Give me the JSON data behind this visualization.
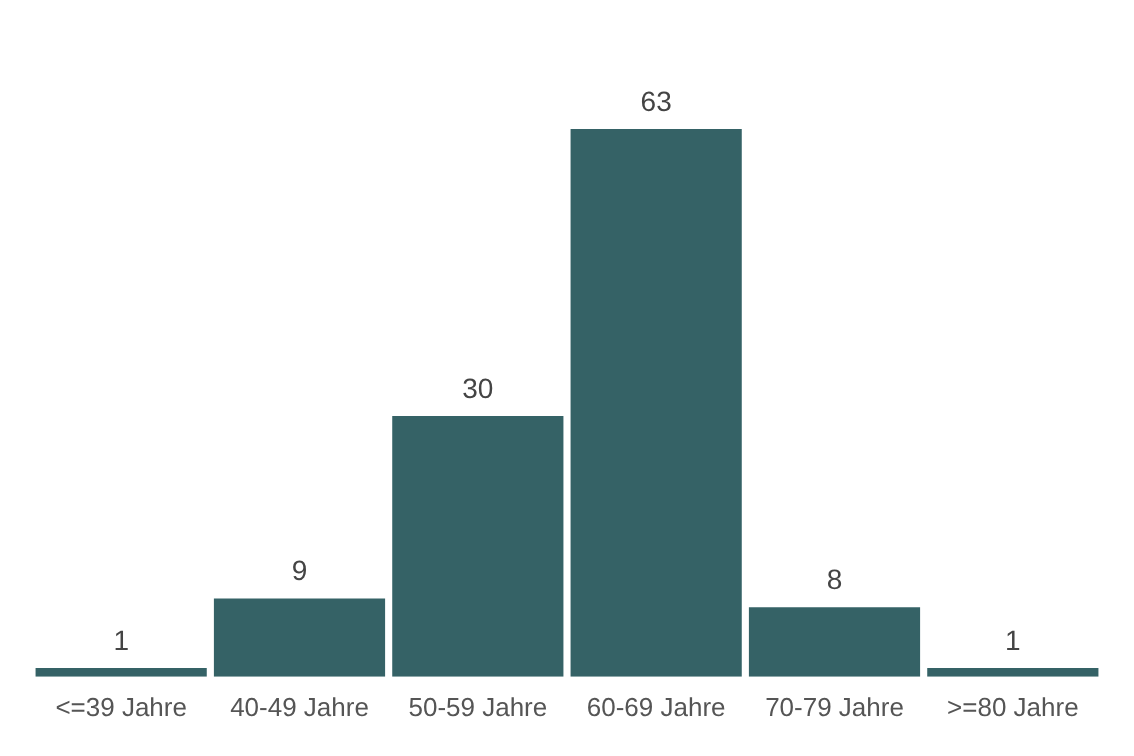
{
  "chart_data": {
    "type": "bar",
    "categories": [
      "<=39 Jahre",
      "40-49 Jahre",
      "50-59 Jahre",
      "60-69 Jahre",
      "70-79 Jahre",
      ">=80 Jahre"
    ],
    "values": [
      1,
      9,
      30,
      63,
      8,
      1
    ],
    "color": "#356266",
    "data_labels": true,
    "grid": false,
    "legend": false
  }
}
